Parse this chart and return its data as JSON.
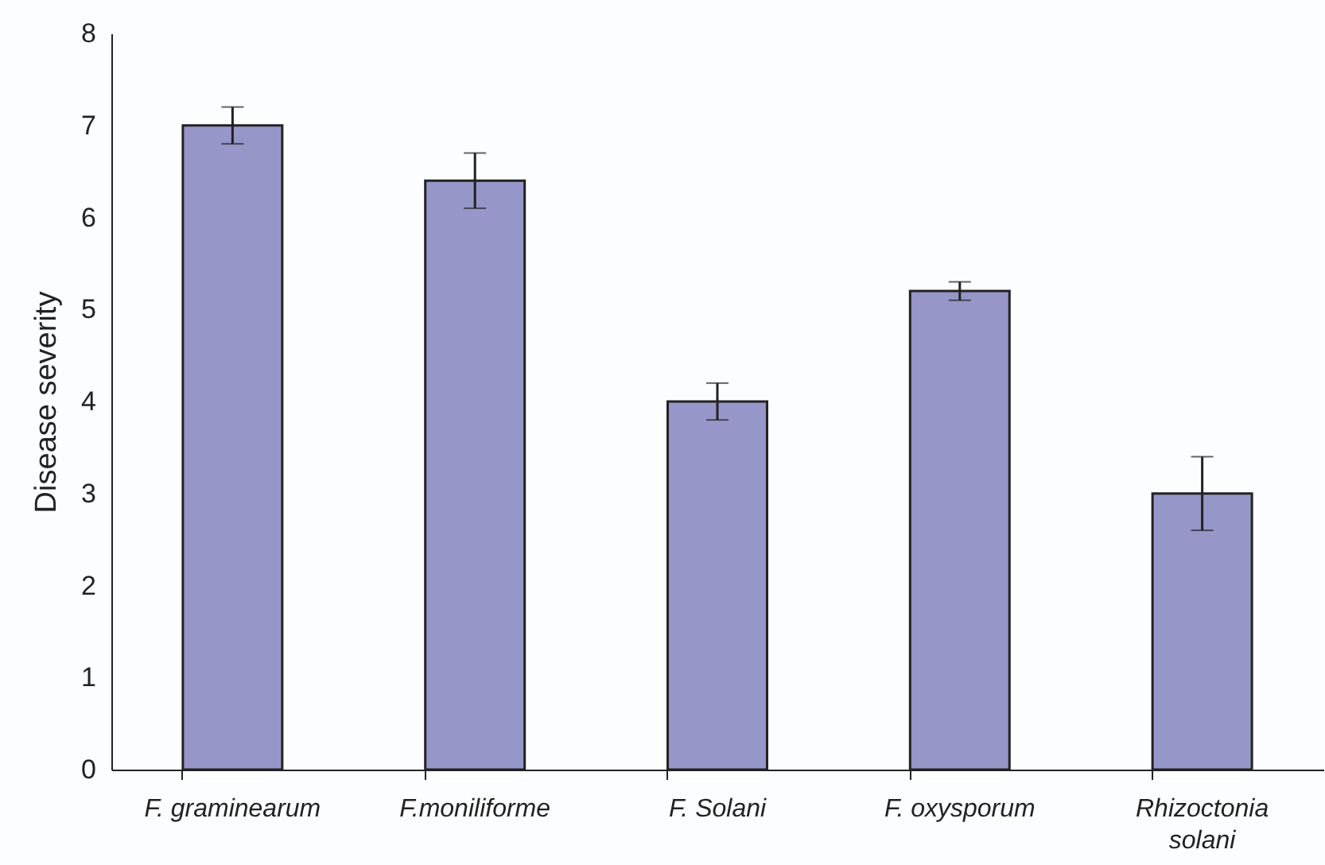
{
  "chart_data": {
    "type": "bar",
    "ylabel": "Disease severity",
    "categories": [
      "F. graminearum",
      "F.moniliforme",
      "F. Solani",
      "F. oxysporum",
      "Rhizoctonia solani"
    ],
    "values": [
      7.0,
      6.4,
      4.0,
      5.2,
      3.0
    ],
    "errors": [
      0.2,
      0.3,
      0.2,
      0.1,
      0.4
    ],
    "color": "#9696c8",
    "ylim": [
      0,
      8
    ],
    "yticks": [
      0,
      1,
      2,
      3,
      4,
      5,
      6,
      7,
      8
    ],
    "grid": false
  }
}
